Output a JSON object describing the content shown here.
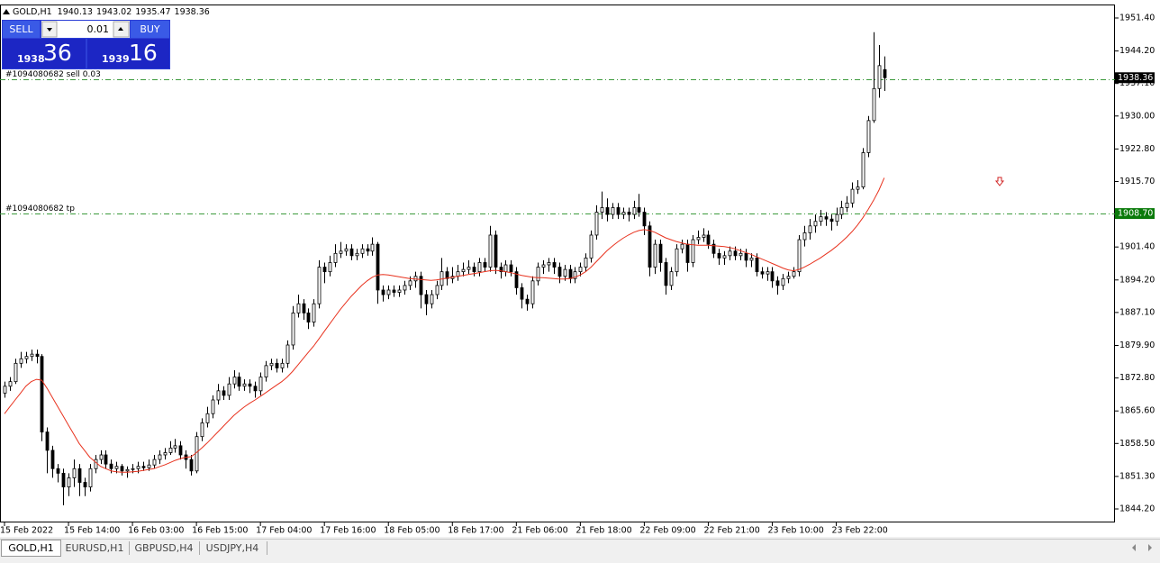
{
  "chart_data": {
    "type": "candlestick",
    "symbol": "GOLD,H1",
    "categories": [
      "15 Feb 2022",
      null,
      null,
      null,
      null,
      null,
      null,
      null,
      null,
      null,
      null,
      null,
      "15 Feb 14:00",
      null,
      null,
      null,
      null,
      null,
      null,
      null,
      null,
      null,
      null,
      null,
      "16 Feb 03:00",
      null,
      null,
      null,
      null,
      null,
      null,
      null,
      null,
      null,
      null,
      null,
      "16 Feb 15:00",
      null,
      null,
      null,
      null,
      null,
      null,
      null,
      null,
      null,
      null,
      null,
      "17 Feb 04:00",
      null,
      null,
      null,
      null,
      null,
      null,
      null,
      null,
      null,
      null,
      null,
      "17 Feb 16:00",
      null,
      null,
      null,
      null,
      null,
      null,
      null,
      null,
      null,
      null,
      null,
      "18 Feb 05:00",
      null,
      null,
      null,
      null,
      null,
      null,
      null,
      null,
      null,
      null,
      null,
      "18 Feb 17:00",
      null,
      null,
      null,
      null,
      null,
      null,
      null,
      null,
      null,
      null,
      null,
      "21 Feb 06:00",
      null,
      null,
      null,
      null,
      null,
      null,
      null,
      null,
      null,
      null,
      null,
      "21 Feb 18:00",
      null,
      null,
      null,
      null,
      null,
      null,
      null,
      null,
      null,
      null,
      null,
      "22 Feb 09:00",
      null,
      null,
      null,
      null,
      null,
      null,
      null,
      null,
      null,
      null,
      null,
      "22 Feb 21:00",
      null,
      null,
      null,
      null,
      null,
      null,
      null,
      null,
      null,
      null,
      null,
      "23 Feb 10:00",
      null,
      null,
      null,
      null,
      null,
      null,
      null,
      null,
      null,
      null,
      null,
      "23 Feb 22:00",
      null,
      null,
      null,
      null,
      null,
      null,
      null,
      null,
      null
    ],
    "open": [
      1869.5,
      1871,
      1872,
      1876,
      1877,
      1877.5,
      1878,
      1877.5,
      1861,
      1857,
      1853,
      1852,
      1849,
      1851,
      1853,
      1850,
      1849,
      1853,
      1855,
      1856,
      1854,
      1853,
      1853.5,
      1852.5,
      1852.8,
      1853,
      1853.5,
      1853.2,
      1853.8,
      1855,
      1856,
      1856.5,
      1857.5,
      1858,
      1856,
      1855,
      1852.5,
      1860,
      1863,
      1865,
      1868,
      1870,
      1869,
      1871.5,
      1873,
      1871,
      1871.5,
      1871,
      1870,
      1873,
      1875.5,
      1876,
      1875,
      1876,
      1880,
      1887,
      1889,
      1887,
      1885,
      1889,
      1897,
      1896,
      1898,
      1900,
      1900.5,
      1901,
      1899.5,
      1900,
      1901,
      1900.5,
      1902,
      1892,
      1891,
      1892,
      1891.5,
      1892,
      1893,
      1894,
      1895,
      1891,
      1889,
      1891,
      1893,
      1896,
      1894.5,
      1895,
      1896,
      1896.5,
      1897,
      1896,
      1898,
      1897,
      1904,
      1897,
      1896,
      1897.5,
      1896,
      1892.5,
      1890,
      1889,
      1894,
      1897,
      1897.5,
      1898,
      1897,
      1895,
      1896.5,
      1894.5,
      1896,
      1897,
      1899,
      1904,
      1909,
      1910,
      1908.5,
      1910,
      1908.5,
      1909,
      1908.5,
      1910,
      1909,
      1906,
      1897,
      1902,
      1898,
      1893,
      1896,
      1901,
      1902,
      1898,
      1903,
      1903.5,
      1904,
      1902,
      1900,
      1899,
      1899.5,
      1900.5,
      1899.5,
      1900,
      1898.5,
      1899,
      1896,
      1895.5,
      1896,
      1894,
      1893,
      1894.5,
      1895,
      1896,
      1903,
      1904.5,
      1906,
      1907,
      1908,
      1907.5,
      1907,
      1908.5,
      1910,
      1911,
      1914,
      1914.5,
      1922,
      1929,
      1936,
      1940.13
    ],
    "high": [
      1872,
      1873,
      1877,
      1878.5,
      1878.5,
      1879,
      1879,
      1878,
      1862,
      1858,
      1854,
      1853,
      1852,
      1855,
      1854,
      1851,
      1854,
      1856,
      1857,
      1857,
      1855,
      1854.5,
      1854,
      1853.5,
      1854,
      1854.5,
      1854.5,
      1855,
      1856,
      1857,
      1857.5,
      1859,
      1859.5,
      1859,
      1857,
      1856,
      1861,
      1864,
      1866.5,
      1869,
      1871.5,
      1871,
      1873,
      1874.5,
      1874,
      1872.5,
      1872.5,
      1872,
      1874,
      1876.5,
      1877,
      1877,
      1877,
      1881,
      1888.5,
      1891,
      1890,
      1888,
      1890,
      1898.5,
      1898,
      1899.5,
      1902,
      1902.5,
      1902,
      1902,
      1901,
      1902,
      1902,
      1903.5,
      1902.5,
      1893,
      1893,
      1893,
      1893,
      1894,
      1895,
      1896,
      1896,
      1892,
      1892,
      1894,
      1899,
      1897,
      1897,
      1897.5,
      1898,
      1898.5,
      1898,
      1899,
      1899,
      1906,
      1905,
      1898,
      1898.5,
      1898.5,
      1897,
      1893.5,
      1891,
      1895,
      1898,
      1898.5,
      1899,
      1899,
      1898,
      1897.5,
      1897.5,
      1897,
      1898,
      1900,
      1905,
      1910.5,
      1913.5,
      1912,
      1911,
      1911,
      1910,
      1910,
      1911.5,
      1913,
      1910,
      1907,
      1903,
      1903,
      1899,
      1897,
      1902,
      1903,
      1903,
      1904,
      1905,
      1905.5,
      1905,
      1903,
      1901,
      1900.5,
      1901.5,
      1901.5,
      1901,
      1901,
      1900,
      1900,
      1897,
      1897,
      1897,
      1895,
      1895.5,
      1896,
      1897,
      1904,
      1906,
      1907.5,
      1908.5,
      1909.5,
      1909,
      1908.5,
      1910,
      1911.5,
      1912.5,
      1915.5,
      1916,
      1923,
      1930,
      1948.3,
      1945.5,
      1943.02
    ],
    "low": [
      1868.5,
      1870,
      1871.5,
      1875,
      1876,
      1876.5,
      1876,
      1859,
      1852,
      1851,
      1850,
      1845,
      1847,
      1849,
      1847,
      1847,
      1848,
      1852,
      1854,
      1853,
      1852,
      1852,
      1851.5,
      1851,
      1852,
      1852,
      1852.5,
      1852.5,
      1853,
      1854,
      1855,
      1856,
      1856.5,
      1855,
      1853,
      1851.5,
      1852,
      1859,
      1862,
      1864,
      1867,
      1868,
      1868,
      1870.5,
      1870,
      1870,
      1869.5,
      1868.5,
      1869,
      1872,
      1874.5,
      1874,
      1874,
      1875,
      1879,
      1886,
      1885.5,
      1883.5,
      1884,
      1888,
      1893.5,
      1895,
      1897,
      1899,
      1899.5,
      1898.5,
      1898.5,
      1899,
      1899.5,
      1899.5,
      1889,
      1889.5,
      1890,
      1890.5,
      1890.5,
      1891,
      1892,
      1892.5,
      1888,
      1886.5,
      1888,
      1890,
      1892,
      1893,
      1893.5,
      1894,
      1895,
      1895.5,
      1895,
      1895,
      1896,
      1896,
      1895.5,
      1894.5,
      1895,
      1895,
      1891,
      1888,
      1887.5,
      1888,
      1893,
      1895.5,
      1896,
      1895.5,
      1893.5,
      1894,
      1893.5,
      1893.5,
      1895,
      1896,
      1898,
      1903,
      1907.5,
      1907,
      1907.5,
      1907.5,
      1907.5,
      1907,
      1907.5,
      1908,
      1904,
      1895,
      1895.5,
      1896,
      1891,
      1892,
      1895,
      1900,
      1896,
      1897,
      1902,
      1902.5,
      1901,
      1899,
      1897.5,
      1897.5,
      1898.5,
      1898.5,
      1898.5,
      1897,
      1897,
      1895,
      1894.5,
      1894,
      1892.5,
      1891,
      1892,
      1893.5,
      1894.5,
      1895,
      1901.5,
      1903,
      1904.5,
      1906,
      1906,
      1905,
      1906,
      1907.5,
      1909,
      1910,
      1913,
      1914,
      1921,
      1928.5,
      1934,
      1935.47
    ],
    "close": [
      1871,
      1872,
      1876,
      1877,
      1877.5,
      1878,
      1877.5,
      1861,
      1857,
      1853,
      1852,
      1849,
      1851,
      1853,
      1850,
      1849,
      1853,
      1855,
      1856,
      1854,
      1853,
      1853.5,
      1852.5,
      1852.8,
      1853,
      1853.5,
      1853.2,
      1853.8,
      1855,
      1856,
      1856.5,
      1857.5,
      1858,
      1856,
      1855,
      1852.5,
      1860,
      1863,
      1865,
      1868,
      1870,
      1869,
      1871.5,
      1873,
      1871,
      1871.5,
      1871,
      1870,
      1873,
      1875.5,
      1876,
      1875,
      1876,
      1880,
      1887,
      1889,
      1887,
      1885,
      1889,
      1897,
      1896,
      1898,
      1900,
      1900.5,
      1901,
      1899.5,
      1900,
      1901,
      1900.5,
      1902,
      1892,
      1891,
      1892,
      1891.5,
      1892,
      1893,
      1894,
      1895,
      1891,
      1889,
      1891,
      1893,
      1896,
      1894.5,
      1895,
      1896,
      1896.5,
      1897,
      1896,
      1898,
      1897,
      1904,
      1897,
      1896,
      1897.5,
      1896,
      1892.5,
      1890,
      1889,
      1894,
      1897,
      1897.5,
      1898,
      1897,
      1895,
      1896.5,
      1894.5,
      1896,
      1897,
      1899,
      1904,
      1909,
      1910,
      1908.5,
      1910,
      1908.5,
      1909,
      1908.5,
      1910,
      1909,
      1906,
      1897,
      1902,
      1898,
      1893,
      1896,
      1901,
      1902,
      1898,
      1903,
      1903.5,
      1904,
      1902,
      1900,
      1899,
      1899.5,
      1900.5,
      1899.5,
      1900,
      1898.5,
      1899,
      1896,
      1895.5,
      1896,
      1894,
      1893,
      1894.5,
      1895,
      1896,
      1903,
      1904.5,
      1906,
      1907,
      1908,
      1907.5,
      1907,
      1908.5,
      1910,
      1911,
      1914,
      1914.5,
      1922,
      1929,
      1936,
      1941,
      1938.36
    ],
    "ma": [
      1865,
      1866.5,
      1868,
      1869.5,
      1871,
      1872,
      1872.5,
      1872.3,
      1870.5,
      1868.5,
      1866.5,
      1864.5,
      1862.5,
      1860.5,
      1858.5,
      1857,
      1855.5,
      1854.5,
      1853.5,
      1853,
      1852.5,
      1852.3,
      1852.2,
      1852.2,
      1852.3,
      1852.4,
      1852.6,
      1852.8,
      1853,
      1853.4,
      1853.8,
      1854.3,
      1854.8,
      1855.2,
      1855.5,
      1855.6,
      1856.5,
      1857.5,
      1858.6,
      1859.8,
      1861,
      1862.2,
      1863.4,
      1864.6,
      1865.6,
      1866.5,
      1867.3,
      1868,
      1868.8,
      1869.6,
      1870.4,
      1871.2,
      1872,
      1873,
      1874.2,
      1875.6,
      1877,
      1878.4,
      1879.8,
      1881.4,
      1883,
      1884.6,
      1886.2,
      1887.8,
      1889.2,
      1890.6,
      1891.8,
      1893,
      1894,
      1894.8,
      1895.3,
      1895.4,
      1895.3,
      1895.1,
      1894.9,
      1894.7,
      1894.5,
      1894.4,
      1894.3,
      1894.2,
      1894.1,
      1894.2,
      1894.4,
      1894.6,
      1894.8,
      1895,
      1895.2,
      1895.4,
      1895.6,
      1895.8,
      1896,
      1896.2,
      1896.3,
      1896.2,
      1896,
      1895.8,
      1895.5,
      1895.2,
      1895,
      1894.8,
      1894.7,
      1894.7,
      1894.6,
      1894.5,
      1894.4,
      1894.4,
      1894.5,
      1894.8,
      1895.3,
      1896,
      1897,
      1898.2,
      1899.4,
      1900.6,
      1901.6,
      1902.5,
      1903.3,
      1904,
      1904.6,
      1905,
      1905.2,
      1905,
      1904.6,
      1904,
      1903.4,
      1903,
      1902.6,
      1902.3,
      1902,
      1901.9,
      1901.8,
      1901.8,
      1901.8,
      1901.7,
      1901.6,
      1901.5,
      1901.3,
      1901,
      1900.6,
      1900.2,
      1899.8,
      1899.3,
      1898.8,
      1898.3,
      1897.8,
      1897.3,
      1896.8,
      1896.4,
      1896.2,
      1896.5,
      1897,
      1897.6,
      1898.3,
      1899,
      1899.8,
      1900.6,
      1901.5,
      1902.5,
      1903.6,
      1904.8,
      1906.2,
      1907.8,
      1909.6,
      1911.6,
      1913.8,
      1916.5
    ],
    "up_color": "#ffffff",
    "down_color": "#000000",
    "ma_color": "#e8321e",
    "ylim": [
      1841.25,
      1954.15
    ],
    "yticks": [
      {
        "value": 1951.4,
        "label": "1951.40"
      },
      {
        "value": 1944.2,
        "label": "1944.20"
      },
      {
        "value": 1937.1,
        "label": "1937.10"
      },
      {
        "value": 1930,
        "label": "1930.00"
      },
      {
        "value": 1922.8,
        "label": "1922.80"
      },
      {
        "value": 1915.7,
        "label": "1915.70"
      },
      {
        "value": 1901.4,
        "label": "1901.40"
      },
      {
        "value": 1894.2,
        "label": "1894.20"
      },
      {
        "value": 1887.1,
        "label": "1887.10"
      },
      {
        "value": 1879.9,
        "label": "1879.90"
      },
      {
        "value": 1872.8,
        "label": "1872.80"
      },
      {
        "value": 1865.6,
        "label": "1865.60"
      },
      {
        "value": 1858.5,
        "label": "1858.50"
      },
      {
        "value": 1851.3,
        "label": "1851.30"
      },
      {
        "value": 1844.2,
        "label": "1844.20"
      }
    ],
    "grid": false,
    "bid": 1938.36,
    "order_lines": [
      {
        "label": "#1094080682 sell 0.03",
        "value": 1938.1,
        "color": "#3c9a3c"
      },
      {
        "label": "#1094080682 tp",
        "value": 1908.7,
        "color": "#3c9a3c",
        "price_label": {
          "value": 1908.7,
          "label": "1908.70"
        }
      }
    ]
  },
  "trade_panel": {
    "sell": "SELL",
    "buy": "BUY",
    "lot": "0.01",
    "bid_main": "1938",
    "bid_pips": "36",
    "ask_main": "1939",
    "ask_pips": "16"
  },
  "tabs": [
    "GOLD,H1",
    "EURUSD,H1",
    "GBPUSD,H4",
    "USDJPY,H4"
  ]
}
